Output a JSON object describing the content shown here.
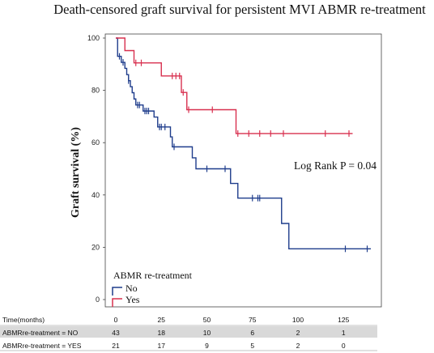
{
  "chart_data": {
    "type": "line",
    "title": "Death-censored graft survival for persistent MVI ABMR re-treatment",
    "ylabel": "Graft survival (%)",
    "xlim": [
      0,
      140
    ],
    "ylim": [
      0,
      100
    ],
    "yticks": [
      0,
      20,
      40,
      60,
      80,
      100
    ],
    "grid": false,
    "legend_title": "ABMR re-treatment",
    "legend_position": "bottom-left",
    "annotation": "Log Rank P = 0.04",
    "series": [
      {
        "name": "No",
        "color": "#1f3d8c",
        "steps": [
          [
            0,
            100
          ],
          [
            1,
            93.0
          ],
          [
            3,
            90.7
          ],
          [
            5,
            88.4
          ],
          [
            6,
            86.0
          ],
          [
            7,
            83.7
          ],
          [
            8,
            81.4
          ],
          [
            9,
            79.1
          ],
          [
            10,
            76.7
          ],
          [
            11,
            74.4
          ],
          [
            15,
            72.1
          ],
          [
            21,
            69.8
          ],
          [
            23,
            66.0
          ],
          [
            30,
            62.2
          ],
          [
            31,
            58.4
          ],
          [
            42,
            54.2
          ],
          [
            44,
            50.0
          ],
          [
            63,
            44.4
          ],
          [
            67,
            38.8
          ],
          [
            91,
            29.1
          ],
          [
            95,
            19.4
          ],
          [
            140,
            19.4
          ]
        ],
        "censored": [
          [
            2,
            93.0
          ],
          [
            4,
            90.7
          ],
          [
            7,
            83.7
          ],
          [
            12,
            74.4
          ],
          [
            13,
            74.4
          ],
          [
            16,
            72.1
          ],
          [
            17,
            72.1
          ],
          [
            18,
            72.1
          ],
          [
            24,
            66.0
          ],
          [
            25,
            66.0
          ],
          [
            27,
            66.0
          ],
          [
            32,
            58.4
          ],
          [
            50,
            50.0
          ],
          [
            60,
            50.0
          ],
          [
            75,
            38.8
          ],
          [
            78,
            38.8
          ],
          [
            79,
            38.8
          ],
          [
            126,
            19.4
          ],
          [
            138,
            19.4
          ]
        ]
      },
      {
        "name": "Yes",
        "color": "#d8304f",
        "steps": [
          [
            0,
            100
          ],
          [
            5,
            95.2
          ],
          [
            10,
            90.5
          ],
          [
            25,
            85.5
          ],
          [
            36,
            79.2
          ],
          [
            39,
            72.6
          ],
          [
            66,
            63.5
          ],
          [
            130,
            63.5
          ]
        ],
        "censored": [
          [
            11,
            90.5
          ],
          [
            14,
            90.5
          ],
          [
            31,
            85.5
          ],
          [
            33,
            85.5
          ],
          [
            35,
            85.5
          ],
          [
            37,
            79.2
          ],
          [
            40,
            72.6
          ],
          [
            53,
            72.6
          ],
          [
            67,
            63.5
          ],
          [
            73,
            63.5
          ],
          [
            79,
            63.5
          ],
          [
            85,
            63.5
          ],
          [
            92,
            63.5
          ],
          [
            115,
            63.5
          ],
          [
            128,
            63.5
          ]
        ]
      }
    ],
    "risk_table": {
      "header_label": "Time(months)",
      "times": [
        "0",
        "25",
        "50",
        "75",
        "100",
        "125"
      ],
      "rows": [
        {
          "label": "ABMRre-treatment = NO",
          "counts": [
            "43",
            "18",
            "10",
            "6",
            "2",
            "1"
          ]
        },
        {
          "label": "ABMRre-treatment = YES",
          "counts": [
            "21",
            "17",
            "9",
            "5",
            "2",
            "0"
          ]
        }
      ]
    }
  }
}
